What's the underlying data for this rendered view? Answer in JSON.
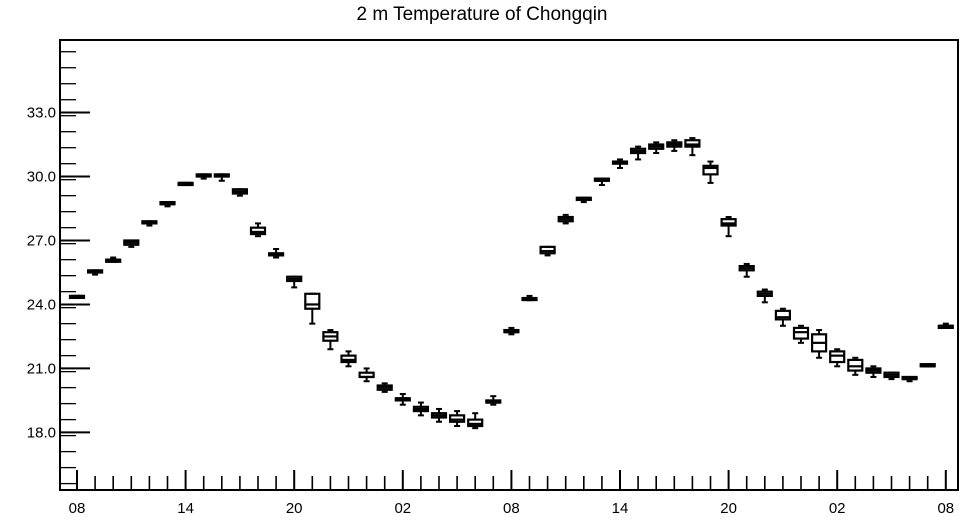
{
  "chart_data": {
    "type": "box",
    "title": "2 m Temperature of Chongqin",
    "xlabel": "",
    "ylabel": "",
    "ylim": [
      15.3,
      36.4
    ],
    "yticks": [
      18.0,
      21.0,
      24.0,
      27.0,
      30.0,
      33.0
    ],
    "ytick_labels": [
      "18.0",
      "21.0",
      "24.0",
      "27.0",
      "30.0",
      "33.0"
    ],
    "x_tick_labels": [
      "08",
      "14",
      "20",
      "02",
      "08",
      "14",
      "20",
      "02",
      "08"
    ],
    "grid": false,
    "boxes": [
      {
        "x": 0,
        "min": 24.4,
        "q1": 24.4,
        "median": 24.4,
        "q3": 24.4,
        "max": 24.4
      },
      {
        "x": 1,
        "min": 25.4,
        "q1": 25.5,
        "median": 25.5,
        "q3": 25.6,
        "max": 25.6
      },
      {
        "x": 2,
        "min": 26.0,
        "q1": 26.0,
        "median": 26.1,
        "q3": 26.1,
        "max": 26.2
      },
      {
        "x": 3,
        "min": 26.7,
        "q1": 26.8,
        "median": 26.9,
        "q3": 27.0,
        "max": 27.0
      },
      {
        "x": 4,
        "min": 27.7,
        "q1": 27.8,
        "median": 27.8,
        "q3": 27.9,
        "max": 27.9
      },
      {
        "x": 5,
        "min": 28.6,
        "q1": 28.7,
        "median": 28.7,
        "q3": 28.8,
        "max": 28.8
      },
      {
        "x": 6,
        "min": 29.6,
        "q1": 29.6,
        "median": 29.7,
        "q3": 29.7,
        "max": 29.7
      },
      {
        "x": 7,
        "min": 29.9,
        "q1": 30.0,
        "median": 30.0,
        "q3": 30.1,
        "max": 30.1
      },
      {
        "x": 8,
        "min": 29.8,
        "q1": 30.0,
        "median": 30.0,
        "q3": 30.1,
        "max": 30.1
      },
      {
        "x": 9,
        "min": 29.1,
        "q1": 29.2,
        "median": 29.3,
        "q3": 29.4,
        "max": 29.4
      },
      {
        "x": 10,
        "min": 27.2,
        "q1": 27.3,
        "median": 27.4,
        "q3": 27.6,
        "max": 27.8
      },
      {
        "x": 11,
        "min": 26.2,
        "q1": 26.3,
        "median": 26.3,
        "q3": 26.4,
        "max": 26.6
      },
      {
        "x": 12,
        "min": 24.8,
        "q1": 25.1,
        "median": 25.2,
        "q3": 25.3,
        "max": 25.3
      },
      {
        "x": 13,
        "min": 23.1,
        "q1": 23.8,
        "median": 24.0,
        "q3": 24.5,
        "max": 24.5
      },
      {
        "x": 14,
        "min": 21.9,
        "q1": 22.3,
        "median": 22.5,
        "q3": 22.7,
        "max": 22.8
      },
      {
        "x": 15,
        "min": 21.1,
        "q1": 21.3,
        "median": 21.4,
        "q3": 21.6,
        "max": 21.8
      },
      {
        "x": 16,
        "min": 20.4,
        "q1": 20.6,
        "median": 20.6,
        "q3": 20.8,
        "max": 21.0
      },
      {
        "x": 17,
        "min": 19.9,
        "q1": 20.0,
        "median": 20.1,
        "q3": 20.2,
        "max": 20.3
      },
      {
        "x": 18,
        "min": 19.3,
        "q1": 19.5,
        "median": 19.6,
        "q3": 19.6,
        "max": 19.8
      },
      {
        "x": 19,
        "min": 18.8,
        "q1": 19.0,
        "median": 19.1,
        "q3": 19.2,
        "max": 19.4
      },
      {
        "x": 20,
        "min": 18.5,
        "q1": 18.7,
        "median": 18.8,
        "q3": 18.9,
        "max": 19.1
      },
      {
        "x": 21,
        "min": 18.3,
        "q1": 18.5,
        "median": 18.6,
        "q3": 18.8,
        "max": 19.0
      },
      {
        "x": 22,
        "min": 18.2,
        "q1": 18.3,
        "median": 18.4,
        "q3": 18.6,
        "max": 18.9
      },
      {
        "x": 23,
        "min": 19.3,
        "q1": 19.4,
        "median": 19.4,
        "q3": 19.5,
        "max": 19.7
      },
      {
        "x": 24,
        "min": 22.6,
        "q1": 22.7,
        "median": 22.7,
        "q3": 22.8,
        "max": 22.9
      },
      {
        "x": 25,
        "min": 24.2,
        "q1": 24.3,
        "median": 24.3,
        "q3": 24.3,
        "max": 24.4
      },
      {
        "x": 26,
        "min": 26.3,
        "q1": 26.4,
        "median": 26.5,
        "q3": 26.7,
        "max": 26.7
      },
      {
        "x": 27,
        "min": 27.8,
        "q1": 27.9,
        "median": 28.0,
        "q3": 28.1,
        "max": 28.2
      },
      {
        "x": 28,
        "min": 28.8,
        "q1": 28.9,
        "median": 29.0,
        "q3": 29.0,
        "max": 29.0
      },
      {
        "x": 29,
        "min": 29.6,
        "q1": 29.8,
        "median": 29.8,
        "q3": 29.9,
        "max": 29.9
      },
      {
        "x": 30,
        "min": 30.4,
        "q1": 30.6,
        "median": 30.7,
        "q3": 30.7,
        "max": 30.8
      },
      {
        "x": 31,
        "min": 30.8,
        "q1": 31.1,
        "median": 31.2,
        "q3": 31.3,
        "max": 31.4
      },
      {
        "x": 32,
        "min": 31.1,
        "q1": 31.3,
        "median": 31.4,
        "q3": 31.5,
        "max": 31.6
      },
      {
        "x": 33,
        "min": 31.2,
        "q1": 31.4,
        "median": 31.5,
        "q3": 31.6,
        "max": 31.7
      },
      {
        "x": 34,
        "min": 31.0,
        "q1": 31.4,
        "median": 31.5,
        "q3": 31.7,
        "max": 31.8
      },
      {
        "x": 35,
        "min": 29.7,
        "q1": 30.1,
        "median": 30.4,
        "q3": 30.5,
        "max": 30.7
      },
      {
        "x": 36,
        "min": 27.2,
        "q1": 27.7,
        "median": 27.8,
        "q3": 28.0,
        "max": 28.1
      },
      {
        "x": 37,
        "min": 25.3,
        "q1": 25.6,
        "median": 25.7,
        "q3": 25.8,
        "max": 25.9
      },
      {
        "x": 38,
        "min": 24.1,
        "q1": 24.4,
        "median": 24.5,
        "q3": 24.6,
        "max": 24.7
      },
      {
        "x": 39,
        "min": 23.0,
        "q1": 23.3,
        "median": 23.4,
        "q3": 23.7,
        "max": 23.8
      },
      {
        "x": 40,
        "min": 22.2,
        "q1": 22.4,
        "median": 22.7,
        "q3": 22.9,
        "max": 23.0
      },
      {
        "x": 41,
        "min": 21.5,
        "q1": 21.8,
        "median": 22.2,
        "q3": 22.6,
        "max": 22.8
      },
      {
        "x": 42,
        "min": 21.1,
        "q1": 21.3,
        "median": 21.6,
        "q3": 21.8,
        "max": 21.9
      },
      {
        "x": 43,
        "min": 20.7,
        "q1": 20.9,
        "median": 21.1,
        "q3": 21.4,
        "max": 21.5
      },
      {
        "x": 44,
        "min": 20.6,
        "q1": 20.8,
        "median": 20.9,
        "q3": 21.0,
        "max": 21.1
      },
      {
        "x": 45,
        "min": 20.5,
        "q1": 20.6,
        "median": 20.7,
        "q3": 20.8,
        "max": 20.8
      },
      {
        "x": 46,
        "min": 20.4,
        "q1": 20.5,
        "median": 20.5,
        "q3": 20.6,
        "max": 20.6
      },
      {
        "x": 47,
        "min": 21.1,
        "q1": 21.1,
        "median": 21.1,
        "q3": 21.2,
        "max": 21.2
      },
      {
        "x": 48,
        "min": 22.9,
        "q1": 22.9,
        "median": 23.0,
        "q3": 23.0,
        "max": 23.1
      }
    ]
  }
}
